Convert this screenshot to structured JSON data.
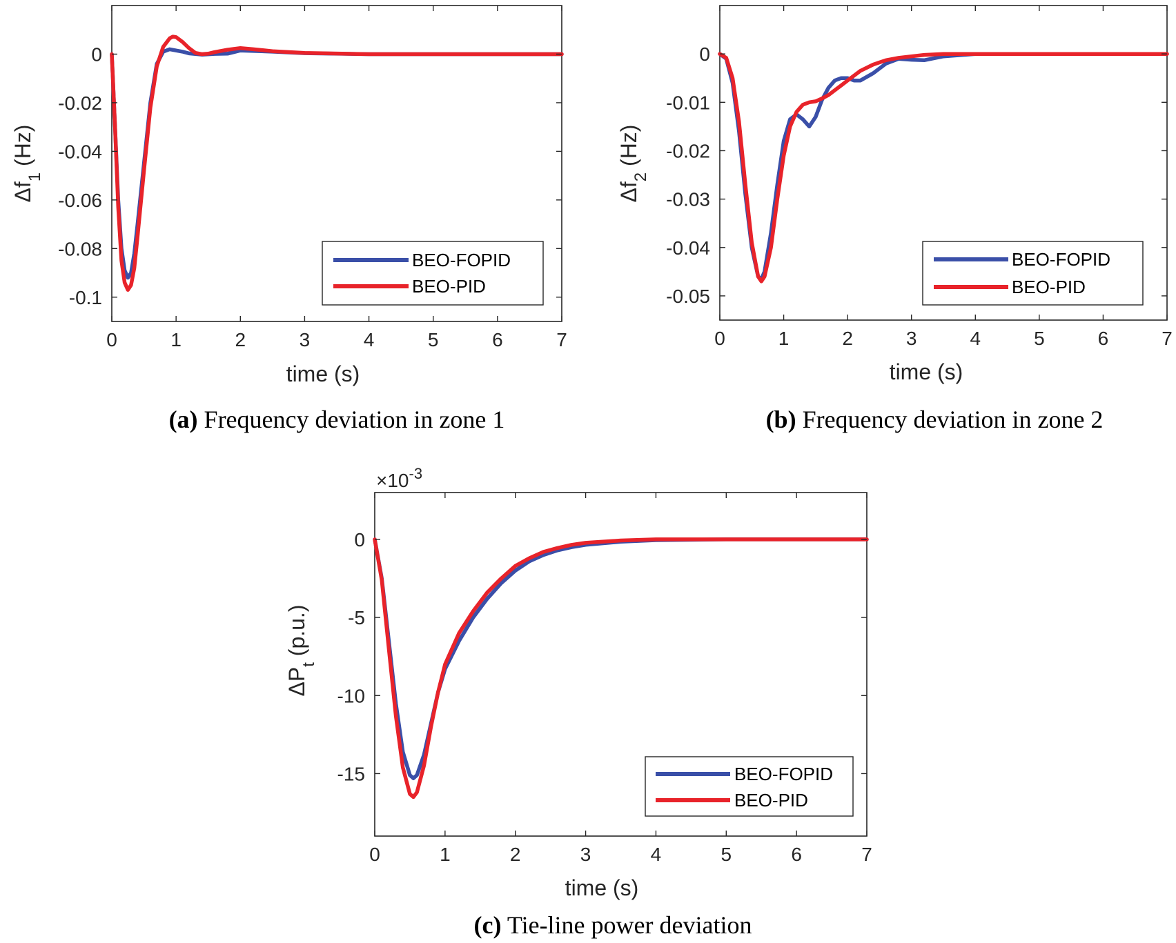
{
  "chart_data": [
    {
      "id": "a",
      "type": "line",
      "caption_label": "(a)",
      "caption_text": "Frequency deviation in zone 1",
      "xlabel": "time (s)",
      "ylabel_main": "Δf",
      "ylabel_sub": "1",
      "ylabel_unit": " (Hz)",
      "exponent_label": "",
      "xlim": [
        0,
        7
      ],
      "ylim": [
        -0.11,
        0.02
      ],
      "xticks": [
        0,
        1,
        2,
        3,
        4,
        5,
        6,
        7
      ],
      "xtick_labels": [
        "0",
        "1",
        "2",
        "3",
        "4",
        "5",
        "6",
        "7"
      ],
      "yticks": [
        0,
        -0.02,
        -0.04,
        -0.06,
        -0.08,
        -0.1
      ],
      "ytick_labels": [
        "0",
        "-0.02",
        "-0.04",
        "-0.06",
        "-0.08",
        "-0.1"
      ],
      "legend": [
        "BEO-FOPID",
        "BEO-PID"
      ],
      "legend_position": "bottom-right",
      "series": [
        {
          "name": "BEO-FOPID",
          "color": "#3a4fa8",
          "x": [
            0,
            0.05,
            0.1,
            0.15,
            0.2,
            0.25,
            0.3,
            0.35,
            0.4,
            0.5,
            0.6,
            0.7,
            0.8,
            0.9,
            1.0,
            1.1,
            1.2,
            1.4,
            1.6,
            1.8,
            2.0,
            2.5,
            3.0,
            4.0,
            5.0,
            6.0,
            7.0
          ],
          "y": [
            0,
            -0.03,
            -0.06,
            -0.08,
            -0.089,
            -0.092,
            -0.09,
            -0.082,
            -0.07,
            -0.045,
            -0.02,
            -0.004,
            0.001,
            0.002,
            0.0015,
            0.001,
            0.0003,
            -0.0002,
            0.0001,
            0.0002,
            0.0015,
            0.001,
            0.0004,
            0,
            0,
            0,
            0
          ]
        },
        {
          "name": "BEO-PID",
          "color": "#e8232a",
          "x": [
            0,
            0.05,
            0.1,
            0.15,
            0.2,
            0.25,
            0.3,
            0.35,
            0.4,
            0.5,
            0.6,
            0.7,
            0.8,
            0.9,
            0.95,
            1.0,
            1.1,
            1.2,
            1.3,
            1.4,
            1.5,
            1.6,
            1.8,
            2.0,
            2.2,
            2.5,
            3.0,
            4.0,
            5.0,
            6.0,
            7.0
          ],
          "y": [
            0,
            -0.03,
            -0.063,
            -0.085,
            -0.094,
            -0.097,
            -0.095,
            -0.088,
            -0.075,
            -0.048,
            -0.022,
            -0.005,
            0.003,
            0.0065,
            0.0072,
            0.007,
            0.005,
            0.0025,
            0.0005,
            0,
            0.0002,
            0.0008,
            0.0018,
            0.0025,
            0.002,
            0.0012,
            0.0005,
            0,
            0,
            0,
            0
          ]
        }
      ]
    },
    {
      "id": "b",
      "type": "line",
      "caption_label": "(b)",
      "caption_text": "Frequency deviation in zone 2",
      "xlabel": "time (s)",
      "ylabel_main": "Δf",
      "ylabel_sub": "2",
      "ylabel_unit": " (Hz)",
      "exponent_label": "",
      "xlim": [
        0,
        7
      ],
      "ylim": [
        -0.055,
        0.01
      ],
      "xticks": [
        0,
        1,
        2,
        3,
        4,
        5,
        6,
        7
      ],
      "xtick_labels": [
        "0",
        "1",
        "2",
        "3",
        "4",
        "5",
        "6",
        "7"
      ],
      "yticks": [
        0,
        -0.01,
        -0.02,
        -0.03,
        -0.04,
        -0.05
      ],
      "ytick_labels": [
        "0",
        "-0.01",
        "-0.02",
        "-0.03",
        "-0.04",
        "-0.05"
      ],
      "legend": [
        "BEO-FOPID",
        "BEO-PID"
      ],
      "legend_position": "bottom-right",
      "series": [
        {
          "name": "BEO-FOPID",
          "color": "#3a4fa8",
          "x": [
            0,
            0.1,
            0.2,
            0.3,
            0.4,
            0.5,
            0.6,
            0.65,
            0.7,
            0.8,
            0.9,
            1.0,
            1.1,
            1.2,
            1.3,
            1.4,
            1.5,
            1.6,
            1.7,
            1.8,
            1.9,
            2.0,
            2.1,
            2.2,
            2.4,
            2.6,
            2.8,
            3.0,
            3.2,
            3.5,
            4.0,
            5.0,
            6.0,
            7.0
          ],
          "y": [
            0,
            -0.001,
            -0.006,
            -0.016,
            -0.029,
            -0.04,
            -0.046,
            -0.0465,
            -0.045,
            -0.037,
            -0.027,
            -0.018,
            -0.0135,
            -0.0125,
            -0.0135,
            -0.015,
            -0.013,
            -0.0095,
            -0.007,
            -0.0055,
            -0.005,
            -0.005,
            -0.0055,
            -0.0055,
            -0.004,
            -0.002,
            -0.001,
            -0.0012,
            -0.0013,
            -0.0005,
            0,
            0,
            0,
            0
          ]
        },
        {
          "name": "BEO-PID",
          "color": "#e8232a",
          "x": [
            0,
            0.1,
            0.2,
            0.3,
            0.4,
            0.5,
            0.6,
            0.65,
            0.7,
            0.8,
            0.9,
            1.0,
            1.1,
            1.2,
            1.3,
            1.4,
            1.5,
            1.6,
            1.7,
            1.8,
            1.9,
            2.0,
            2.2,
            2.4,
            2.6,
            2.8,
            3.0,
            3.2,
            3.5,
            4.0,
            5.0,
            6.0,
            7.0
          ],
          "y": [
            0,
            -0.0008,
            -0.005,
            -0.014,
            -0.027,
            -0.039,
            -0.046,
            -0.047,
            -0.046,
            -0.04,
            -0.03,
            -0.021,
            -0.015,
            -0.012,
            -0.0105,
            -0.01,
            -0.0098,
            -0.0092,
            -0.0085,
            -0.0075,
            -0.0065,
            -0.0055,
            -0.0035,
            -0.0022,
            -0.0013,
            -0.0008,
            -0.0005,
            -0.0002,
            0,
            0,
            0,
            0,
            0
          ]
        }
      ]
    },
    {
      "id": "c",
      "type": "line",
      "caption_label": "(c)",
      "caption_text": "Tie-line power deviation",
      "xlabel": "time (s)",
      "ylabel_main": "ΔP",
      "ylabel_sub": "t",
      "ylabel_unit": " (p.u.)",
      "exponent_label": "×10",
      "exponent_power": "-3",
      "xlim": [
        0,
        7
      ],
      "ylim": [
        -19,
        3
      ],
      "xticks": [
        0,
        1,
        2,
        3,
        4,
        5,
        6,
        7
      ],
      "xtick_labels": [
        "0",
        "1",
        "2",
        "3",
        "4",
        "5",
        "6",
        "7"
      ],
      "yticks": [
        0,
        -5,
        -10,
        -15
      ],
      "ytick_labels": [
        "0",
        "-5",
        "-10",
        "-15"
      ],
      "legend": [
        "BEO-FOPID",
        "BEO-PID"
      ],
      "legend_position": "bottom-right",
      "series": [
        {
          "name": "BEO-FOPID",
          "color": "#3a4fa8",
          "x": [
            0,
            0.1,
            0.2,
            0.3,
            0.4,
            0.5,
            0.55,
            0.6,
            0.7,
            0.8,
            0.9,
            1.0,
            1.2,
            1.4,
            1.6,
            1.8,
            2.0,
            2.2,
            2.4,
            2.6,
            2.8,
            3.0,
            3.5,
            4.0,
            5.0,
            6.0,
            7.0
          ],
          "y": [
            0,
            -2.5,
            -6.5,
            -10.5,
            -13.6,
            -15.1,
            -15.3,
            -15.1,
            -13.8,
            -11.8,
            -9.8,
            -8.3,
            -6.5,
            -5.0,
            -3.8,
            -2.8,
            -2.0,
            -1.4,
            -1.0,
            -0.7,
            -0.5,
            -0.35,
            -0.15,
            -0.05,
            0,
            0,
            0
          ]
        },
        {
          "name": "BEO-PID",
          "color": "#e8232a",
          "x": [
            0,
            0.1,
            0.2,
            0.3,
            0.4,
            0.5,
            0.55,
            0.6,
            0.7,
            0.8,
            0.9,
            1.0,
            1.2,
            1.4,
            1.6,
            1.8,
            2.0,
            2.2,
            2.4,
            2.6,
            2.8,
            3.0,
            3.5,
            4.0,
            5.0,
            6.0,
            7.0
          ],
          "y": [
            0,
            -2.6,
            -7.0,
            -11.3,
            -14.6,
            -16.3,
            -16.5,
            -16.2,
            -14.5,
            -12.0,
            -9.8,
            -8.0,
            -6.0,
            -4.6,
            -3.4,
            -2.5,
            -1.7,
            -1.2,
            -0.8,
            -0.55,
            -0.35,
            -0.22,
            -0.07,
            0,
            0,
            0,
            0
          ]
        }
      ]
    }
  ]
}
